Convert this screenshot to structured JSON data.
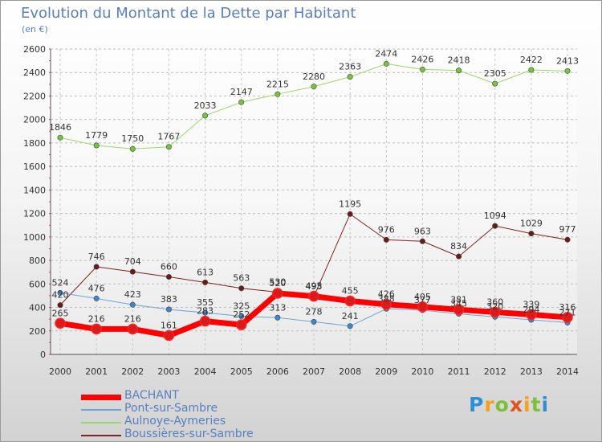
{
  "title": "Evolution du Montant de la Dette par Habitant",
  "subtitle": "(en €)",
  "logo": {
    "letters": [
      "P",
      "r",
      "o",
      "x",
      "i",
      "t",
      "i"
    ],
    "colors": [
      "#2f8fd6",
      "#f2a21f",
      "#7bbf3a",
      "#e2541f",
      "#f2a21f",
      "#7bbf3a",
      "#2f8fd6"
    ]
  },
  "chart_data": {
    "type": "line",
    "title": "Evolution du Montant de la Dette par Habitant",
    "subtitle": "(en €)",
    "xlabel": "",
    "ylabel": "",
    "ylim": [
      0,
      2600
    ],
    "y_ticks": [
      0,
      200,
      400,
      600,
      800,
      1000,
      1200,
      1400,
      1600,
      1800,
      2000,
      2200,
      2400,
      2600
    ],
    "grid": true,
    "legend_position": "bottom-left",
    "categories": [
      "2000",
      "2001",
      "2002",
      "2003",
      "2004",
      "2005",
      "2006",
      "2007",
      "2008",
      "2009",
      "2010",
      "2011",
      "2012",
      "2013",
      "2014"
    ],
    "series": [
      {
        "name": "BACHANT",
        "color": "#ff0000",
        "marker_color": "#d81c1c",
        "width": 7,
        "values": [
          265,
          216,
          216,
          161,
          283,
          252,
          520,
          495,
          455,
          426,
          405,
          381,
          360,
          339,
          316
        ]
      },
      {
        "name": "Pont-sur-Sambre",
        "color": "#6fa4d8",
        "marker_color": "#3f86d0",
        "width": 1,
        "values": [
          524,
          476,
          423,
          383,
          355,
          325,
          313,
          278,
          241,
          388,
          377,
          345,
          320,
          294,
          271
        ]
      },
      {
        "name": "Aulnoye-Aymeries",
        "color": "#9bd86b",
        "marker_color": "#78c43c",
        "width": 1,
        "values": [
          1846,
          1779,
          1750,
          1767,
          2033,
          2147,
          2215,
          2280,
          2363,
          2474,
          2426,
          2418,
          2305,
          2422,
          2413
        ]
      },
      {
        "name": "Boussières-sur-Sambre",
        "color": "#7a2424",
        "marker_color": "#6b1a1a",
        "width": 1,
        "values": [
          420,
          746,
          704,
          660,
          613,
          563,
          530,
          493,
          1195,
          976,
          963,
          834,
          1094,
          1029,
          977
        ]
      }
    ]
  }
}
